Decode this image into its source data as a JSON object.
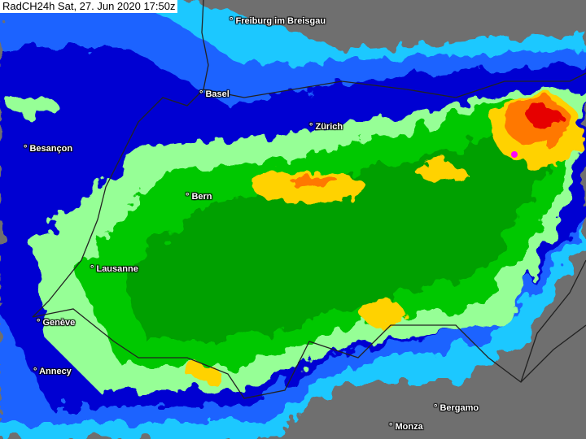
{
  "title": "RadCH24h Sat, 27. Jun 2020 17:50z",
  "cities": [
    {
      "name": "Freiburg im Breisgau"
    },
    {
      "name": "Basel"
    },
    {
      "name": "Zürich"
    },
    {
      "name": "Besançon"
    },
    {
      "name": "Bern"
    },
    {
      "name": "Lausanne"
    },
    {
      "name": "Genève"
    },
    {
      "name": "Annecy"
    },
    {
      "name": "Bergamo"
    },
    {
      "name": "Monza"
    }
  ],
  "city_marker": "°",
  "colors": {
    "no_rain": "#6f6f6f",
    "light": "#1ec8ff",
    "medium_light": "#0a64ff",
    "medium": "#0000c8",
    "light_green": "#96ff96",
    "green": "#00c800",
    "yellow": "#ffd200",
    "orange": "#ff7800",
    "red": "#e60000",
    "magenta": "#ff00ff"
  }
}
